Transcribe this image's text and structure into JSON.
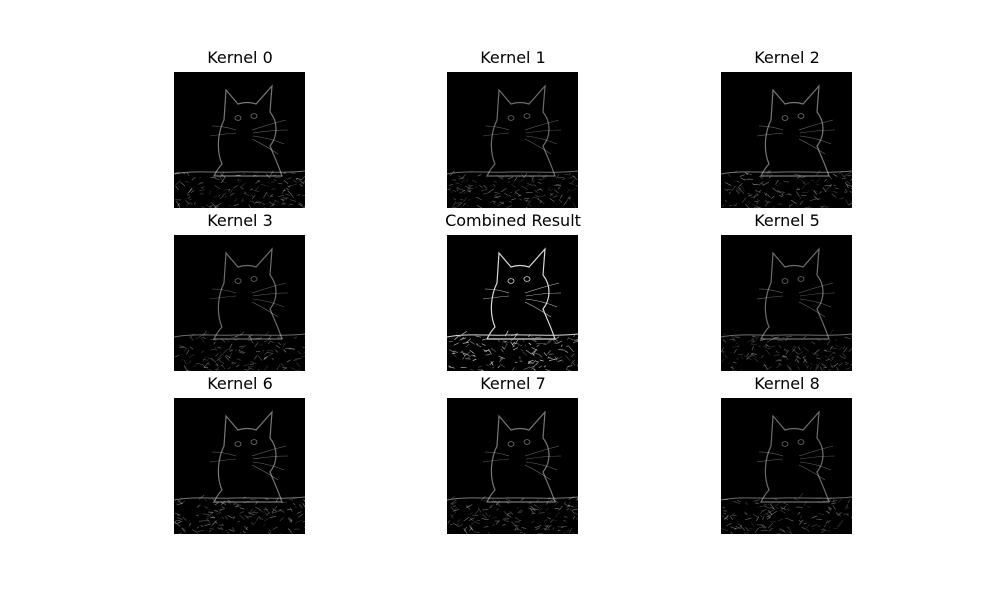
{
  "figure": {
    "panels": [
      {
        "title": "Kernel 0",
        "image": "edge-filtered kitten photo",
        "intensity": 0.55
      },
      {
        "title": "Kernel 1",
        "image": "edge-filtered kitten photo",
        "intensity": 0.5
      },
      {
        "title": "Kernel 2",
        "image": "edge-filtered kitten photo",
        "intensity": 0.55
      },
      {
        "title": "Kernel 3",
        "image": "edge-filtered kitten photo",
        "intensity": 0.5
      },
      {
        "title": "Combined Result",
        "image": "edge-filtered kitten photo",
        "intensity": 1.0
      },
      {
        "title": "Kernel 5",
        "image": "edge-filtered kitten photo",
        "intensity": 0.5
      },
      {
        "title": "Kernel 6",
        "image": "edge-filtered kitten photo",
        "intensity": 0.55
      },
      {
        "title": "Kernel 7",
        "image": "edge-filtered kitten photo",
        "intensity": 0.55
      },
      {
        "title": "Kernel 8",
        "image": "edge-filtered kitten photo",
        "intensity": 0.5
      }
    ],
    "colors": {
      "background": "#ffffff",
      "image_background": "#000000",
      "edge": "#d9d9d9"
    }
  }
}
